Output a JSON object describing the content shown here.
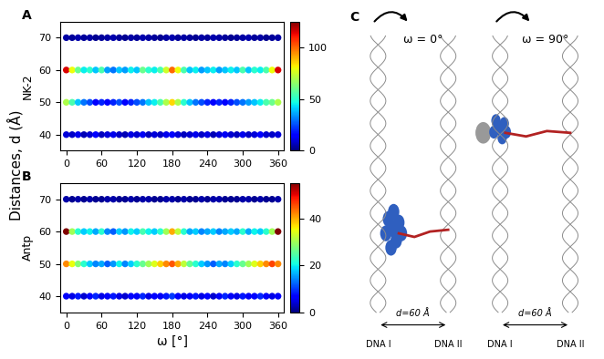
{
  "shared_ylabel": "Distances, d (Å)",
  "chart_data": [
    {
      "type": "scatter",
      "label": "A",
      "ylabel": "NK-2",
      "xlabel": null,
      "x": [
        0,
        10,
        20,
        30,
        40,
        50,
        60,
        70,
        80,
        90,
        100,
        110,
        120,
        130,
        140,
        150,
        160,
        170,
        180,
        190,
        200,
        210,
        220,
        230,
        240,
        250,
        260,
        270,
        280,
        290,
        300,
        310,
        320,
        330,
        340,
        350,
        360
      ],
      "y": [
        40,
        50,
        60,
        70
      ],
      "cells": [
        [
          10,
          8,
          12,
          6,
          9,
          14,
          7,
          10,
          12,
          8,
          6,
          11,
          9,
          13,
          7,
          10,
          8,
          12,
          15,
          10,
          7,
          9,
          12,
          8,
          11,
          6,
          10,
          13,
          9,
          7,
          12,
          8,
          10,
          14,
          9,
          8,
          10
        ],
        [
          70,
          55,
          40,
          30,
          25,
          15,
          20,
          15,
          20,
          25,
          15,
          20,
          25,
          30,
          40,
          45,
          55,
          70,
          85,
          70,
          50,
          40,
          30,
          25,
          20,
          15,
          20,
          15,
          20,
          25,
          30,
          35,
          40,
          45,
          55,
          60,
          70
        ],
        [
          115,
          80,
          60,
          45,
          50,
          40,
          55,
          35,
          30,
          40,
          35,
          45,
          40,
          60,
          50,
          45,
          55,
          75,
          100,
          80,
          55,
          40,
          45,
          35,
          40,
          45,
          35,
          40,
          45,
          40,
          55,
          40,
          50,
          45,
          55,
          80,
          115
        ],
        [
          4,
          3,
          5,
          3,
          4,
          2,
          3,
          4,
          5,
          3,
          2,
          4,
          3,
          5,
          4,
          3,
          2,
          4,
          5,
          3,
          4,
          3,
          2,
          4,
          3,
          5,
          4,
          3,
          2,
          3,
          4,
          5,
          3,
          4,
          2,
          3,
          4
        ]
      ],
      "xlim": [
        -10,
        370
      ],
      "xticks": [
        0,
        60,
        120,
        180,
        240,
        300,
        360
      ],
      "ylim": [
        35,
        75
      ],
      "yticks": [
        40,
        50,
        60,
        70
      ],
      "colorbar_range": [
        0,
        125
      ],
      "colorbar_ticks": [
        0,
        50,
        100
      ]
    },
    {
      "type": "scatter",
      "label": "B",
      "ylabel": "Antp",
      "xlabel": "ω [°]",
      "x": [
        0,
        10,
        20,
        30,
        40,
        50,
        60,
        70,
        80,
        90,
        100,
        110,
        120,
        130,
        140,
        150,
        160,
        170,
        180,
        190,
        200,
        210,
        220,
        230,
        240,
        250,
        260,
        270,
        280,
        290,
        300,
        310,
        320,
        330,
        340,
        350,
        360
      ],
      "y": [
        40,
        50,
        60,
        70
      ],
      "cells": [
        [
          6,
          5,
          8,
          4,
          7,
          9,
          5,
          6,
          8,
          5,
          4,
          7,
          6,
          9,
          5,
          7,
          6,
          8,
          10,
          7,
          5,
          6,
          8,
          5,
          7,
          4,
          6,
          9,
          6,
          5,
          8,
          6,
          7,
          9,
          6,
          5,
          6
        ],
        [
          42,
          35,
          28,
          22,
          18,
          14,
          16,
          12,
          15,
          20,
          14,
          18,
          22,
          26,
          30,
          34,
          38,
          42,
          45,
          40,
          32,
          26,
          22,
          18,
          15,
          12,
          16,
          14,
          18,
          22,
          26,
          30,
          34,
          38,
          42,
          46,
          42
        ],
        [
          55,
          30,
          22,
          18,
          20,
          16,
          22,
          14,
          12,
          18,
          15,
          20,
          18,
          24,
          20,
          18,
          22,
          30,
          40,
          32,
          22,
          16,
          18,
          14,
          16,
          18,
          14,
          16,
          18,
          16,
          22,
          16,
          20,
          18,
          22,
          30,
          55
        ],
        [
          2,
          1,
          2,
          1,
          2,
          1,
          1,
          2,
          2,
          1,
          1,
          2,
          1,
          2,
          2,
          1,
          1,
          2,
          2,
          1,
          2,
          1,
          1,
          2,
          1,
          2,
          2,
          1,
          1,
          1,
          2,
          2,
          1,
          2,
          1,
          1,
          2
        ]
      ],
      "xlim": [
        -10,
        370
      ],
      "xticks": [
        0,
        60,
        120,
        180,
        240,
        300,
        360
      ],
      "ylim": [
        35,
        75
      ],
      "yticks": [
        40,
        50,
        60,
        70
      ],
      "colorbar_range": [
        0,
        55
      ],
      "colorbar_ticks": [
        0,
        20,
        40
      ]
    }
  ],
  "panel_c": {
    "label": "C",
    "configurations": [
      {
        "title": "ω = 0°",
        "distance_label": "d=60 Å",
        "dna_labels": [
          "DNA I",
          "DNA II"
        ]
      },
      {
        "title": "ω = 90°",
        "distance_label": "d=60 Å",
        "dna_labels": [
          "DNA I",
          "DNA II"
        ]
      }
    ]
  }
}
